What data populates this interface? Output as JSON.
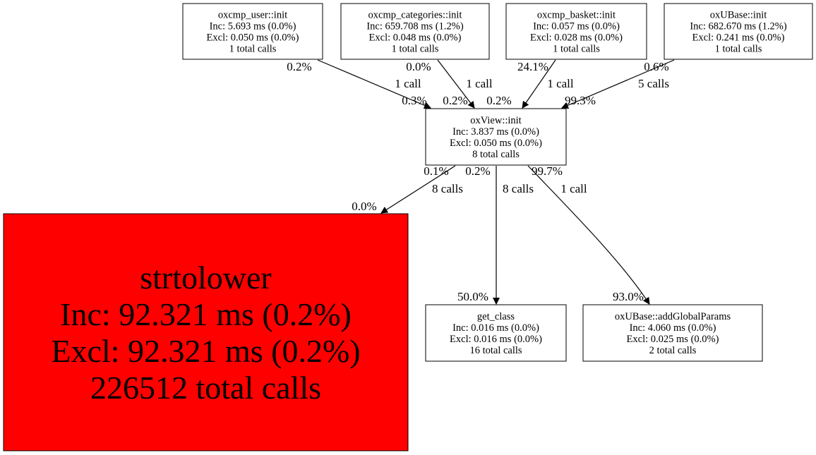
{
  "nodes": [
    {
      "id": "user",
      "name": "oxcmp_user::init",
      "inc": "Inc: 5.693 ms (0.0%)",
      "excl": "Excl: 0.050 ms (0.0%)",
      "calls": "1 total calls",
      "fill": "#ffffff"
    },
    {
      "id": "categories",
      "name": "oxcmp_categories::init",
      "inc": "Inc: 659.708 ms (1.2%)",
      "excl": "Excl: 0.048 ms (0.0%)",
      "calls": "1 total calls",
      "fill": "#ffffff"
    },
    {
      "id": "basket",
      "name": "oxcmp_basket::init",
      "inc": "Inc: 0.057 ms (0.0%)",
      "excl": "Excl: 0.028 ms (0.0%)",
      "calls": "1 total calls",
      "fill": "#ffffff"
    },
    {
      "id": "ubaseinit",
      "name": "oxUBase::init",
      "inc": "Inc: 682.670 ms (1.2%)",
      "excl": "Excl: 0.241 ms (0.0%)",
      "calls": "1 total calls",
      "fill": "#ffffff"
    },
    {
      "id": "view",
      "name": "oxView::init",
      "inc": "Inc: 3.837 ms (0.0%)",
      "excl": "Excl: 0.050 ms (0.0%)",
      "calls": "8 total calls",
      "fill": "#ffffff"
    },
    {
      "id": "strtolower",
      "name": "strtolower",
      "inc": "Inc: 92.321 ms (0.2%)",
      "excl": "Excl: 92.321 ms (0.2%)",
      "calls": "226512 total calls",
      "fill": "#ff0000"
    },
    {
      "id": "getclass",
      "name": "get_class",
      "inc": "Inc: 0.016 ms (0.0%)",
      "excl": "Excl: 0.016 ms (0.0%)",
      "calls": "16 total calls",
      "fill": "#ffffff"
    },
    {
      "id": "addglobal",
      "name": "oxUBase::addGlobalParams",
      "inc": "Inc: 4.060 ms (0.0%)",
      "excl": "Excl: 0.025 ms (0.0%)",
      "calls": "2 total calls",
      "fill": "#ffffff"
    }
  ],
  "edges": [
    {
      "from": "user",
      "to": "view",
      "tail": "0.2%",
      "label": "1 call",
      "head": "0.3%"
    },
    {
      "from": "categories",
      "to": "view",
      "tail": "0.0%",
      "label": "1 call",
      "head": "0.2%"
    },
    {
      "from": "basket",
      "to": "view",
      "tail": "24.1%",
      "label": "1 call",
      "head": "0.2%"
    },
    {
      "from": "ubaseinit",
      "to": "view",
      "tail": "0.6%",
      "label": "5 calls",
      "head": "99.3%"
    },
    {
      "from": "view",
      "to": "strtolower",
      "tail": "0.1%",
      "label": "8 calls",
      "head": "0.0%"
    },
    {
      "from": "view",
      "to": "getclass",
      "tail": "0.2%",
      "label": "8 calls",
      "head": "50.0%"
    },
    {
      "from": "view",
      "to": "addglobal",
      "tail": "99.7%",
      "label": "1 call",
      "head": "93.0%"
    }
  ]
}
